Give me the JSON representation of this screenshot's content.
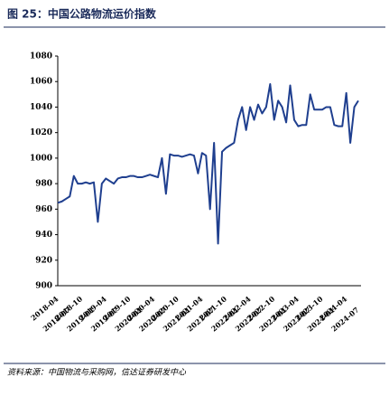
{
  "title": "图 25：中国公路物流运价指数",
  "source": "资料来源：中国物流与采购网，信达证券研发中心",
  "chart_data": {
    "type": "line",
    "categories": [
      "2018-04",
      null,
      null,
      "2018-07",
      null,
      null,
      "2018-10",
      null,
      null,
      "2019-01",
      null,
      null,
      "2019-04",
      null,
      null,
      "2019-07",
      null,
      null,
      "2019-10",
      null,
      null,
      "2020-01",
      null,
      null,
      "2020-04",
      null,
      null,
      "2020-07",
      null,
      null,
      "2020-10",
      null,
      null,
      "2021-01",
      null,
      null,
      "2021-04",
      null,
      null,
      "2021-07",
      null,
      null,
      "2021-10",
      null,
      null,
      "2022-01",
      null,
      null,
      "2022-04",
      null,
      null,
      "2022-07",
      null,
      null,
      "2022-10",
      null,
      null,
      "2023-01",
      null,
      null,
      "2023-04",
      null,
      null,
      "2023-07",
      null,
      null,
      "2023-10",
      null,
      null,
      "2024-01",
      null,
      null,
      "2024-04",
      null,
      null,
      "2024-07"
    ],
    "series": [
      {
        "color": "#1f3f8f",
        "values": [
          965,
          966,
          968,
          970,
          986,
          980,
          980,
          981,
          980,
          981,
          950,
          980,
          984,
          982,
          980,
          984,
          985,
          985,
          986,
          986,
          985,
          985,
          986,
          987,
          986,
          985,
          1000,
          972,
          1003,
          1002,
          1002,
          1001,
          1002,
          1003,
          1002,
          988,
          1004,
          1002,
          960,
          1012,
          933,
          1005,
          1008,
          1010,
          1012,
          1030,
          1040,
          1022,
          1040,
          1030,
          1042,
          1035,
          1040,
          1058,
          1030,
          1045,
          1040,
          1028,
          1057,
          1030,
          1025,
          1026,
          1026,
          1050,
          1038,
          1038,
          1038,
          1040,
          1040,
          1026,
          1025,
          1025,
          1051,
          1012,
          1040,
          1045
        ]
      }
    ],
    "ylim": [
      900,
      1080
    ],
    "yticks": [
      900,
      920,
      940,
      960,
      980,
      1000,
      1020,
      1040,
      1060,
      1080
    ],
    "grid": false
  }
}
